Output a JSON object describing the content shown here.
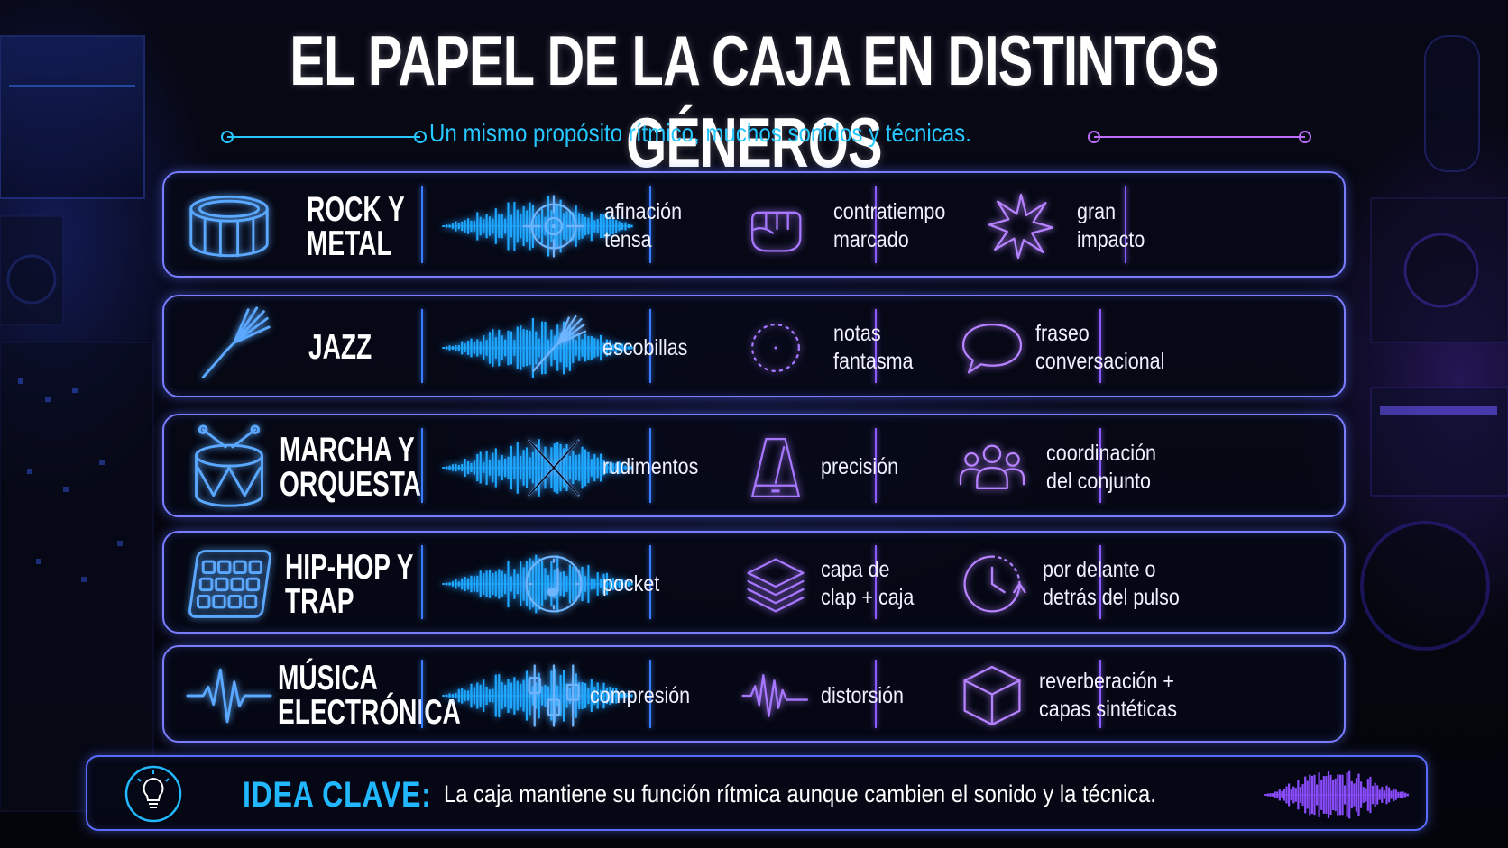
{
  "title": "EL PAPEL DE LA CAJA EN DISTINTOS GÉNEROS",
  "subtitle": "Un mismo propósito rítmico, muchos sonidos y técnicas.",
  "colors": {
    "cyan": "#27c8ff",
    "violet": "#b06cff",
    "border": "#7a7dff",
    "background": "#05060d"
  },
  "genres": [
    {
      "name": "ROCK Y\nMETAL",
      "icon": "snare-drum-icon",
      "features": [
        {
          "icon": "crosshair-target-icon",
          "text": "afinación\ntensa"
        },
        {
          "icon": "fist-icon",
          "text": "contratiempo\nmarcado"
        },
        {
          "icon": "starburst-icon",
          "text": "gran\nimpacto"
        }
      ]
    },
    {
      "name": "JAZZ",
      "icon": "drum-brush-icon",
      "features": [
        {
          "icon": "drum-brush-icon",
          "text": "escobillas"
        },
        {
          "icon": "dotted-circle-icon",
          "text": "notas\nfantasma"
        },
        {
          "icon": "speech-bubble-icon",
          "text": "fraseo\nconversacional"
        }
      ]
    },
    {
      "name": "MARCHA Y\nORQUESTA",
      "icon": "marching-drum-icon",
      "features": [
        {
          "icon": "crossed-sticks-icon",
          "text": "rudimentos"
        },
        {
          "icon": "metronome-icon",
          "text": "precisión"
        },
        {
          "icon": "group-people-icon",
          "text": "coordinación\ndel conjunto"
        }
      ]
    },
    {
      "name": "HIP-HOP Y\nTRAP",
      "icon": "drum-pad-icon",
      "features": [
        {
          "icon": "clock-note-icon",
          "text": "pocket"
        },
        {
          "icon": "layers-icon",
          "text": "capa de\nclap + caja"
        },
        {
          "icon": "clock-arrow-icon",
          "text": "por delante o\ndetrás del pulso"
        }
      ]
    },
    {
      "name": "MÚSICA\nELECTRÓNICA",
      "icon": "pulse-wave-icon",
      "features": [
        {
          "icon": "mixer-sliders-icon",
          "text": "compresión"
        },
        {
          "icon": "distortion-wave-icon",
          "text": "distorsión"
        },
        {
          "icon": "cube-icon",
          "text": "reverberación +\ncapas sintéticas"
        }
      ]
    }
  ],
  "key_idea": {
    "icon": "lightbulb-icon",
    "label": "IDEA CLAVE:",
    "text": "La caja mantiene su función rítmica aunque cambien el sonido y la técnica."
  }
}
